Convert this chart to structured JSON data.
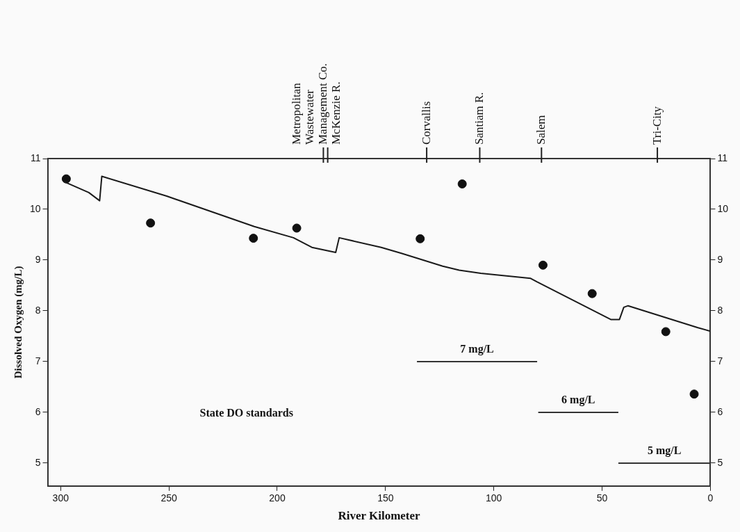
{
  "chart_data": {
    "type": "line",
    "xlabel": "River Kilometer",
    "ylabel": "Dissolved Oxygen (mg/L)",
    "xlim": [
      306,
      0
    ],
    "xticks": [
      300,
      250,
      200,
      150,
      100,
      50,
      0
    ],
    "ylim": [
      4.55,
      11
    ],
    "yticks": [
      5,
      6,
      7,
      8,
      9,
      10,
      11
    ],
    "y2lim": [
      4.55,
      11
    ],
    "y2ticks": [
      5,
      6,
      7,
      8,
      9,
      10,
      11
    ],
    "grid": false,
    "legend": false,
    "series": [
      {
        "color": "#1a1a1a",
        "x": [
          298.7,
          287,
          282,
          281,
          251,
          210.6,
          192.5,
          184,
          173,
          171.4,
          152,
          142.4,
          123.6,
          116,
          106,
          83,
          80,
          46,
          42,
          40,
          38,
          6,
          0
        ],
        "values": [
          10.55,
          10.33,
          10.17,
          10.65,
          10.26,
          9.66,
          9.44,
          9.25,
          9.15,
          9.44,
          9.25,
          9.13,
          8.88,
          8.8,
          8.74,
          8.64,
          8.57,
          7.83,
          7.83,
          8.07,
          8.1,
          7.67,
          7.6
        ]
      },
      {
        "type": "scatter",
        "marker": "circle",
        "color": "#111111",
        "x": [
          297.4,
          258.5,
          211,
          191,
          134,
          114.6,
          77.3,
          54.6,
          20.6,
          7.5
        ],
        "values": [
          10.6,
          9.73,
          9.43,
          9.63,
          9.42,
          10.5,
          8.9,
          8.34,
          7.59,
          6.36
        ]
      },
      {
        "name": "7 mg/L",
        "color": "#333333",
        "x": [
          135.5,
          80
        ],
        "values": [
          7,
          7
        ]
      },
      {
        "name": "6 mg/L",
        "color": "#333333",
        "x": [
          79.5,
          42.5
        ],
        "values": [
          6,
          6
        ]
      },
      {
        "name": "5 mg/L",
        "color": "#333333",
        "x": [
          42.5,
          0
        ],
        "values": [
          5,
          5
        ]
      }
    ],
    "ref_lines": [
      {
        "axis": "x",
        "value": 178.7,
        "label": "Metropolitan\nWastewater\nManagement Co."
      },
      {
        "axis": "x",
        "value": 176.7,
        "label": "McKenzie R."
      },
      {
        "axis": "x",
        "value": 131,
        "label": "Corvallis"
      },
      {
        "axis": "x",
        "value": 106.5,
        "label": "Santiam R."
      },
      {
        "axis": "x",
        "value": 78,
        "label": "Salem"
      },
      {
        "axis": "x",
        "value": 24.5,
        "label": "Tri-City"
      }
    ],
    "annotations": [
      "State DO standards"
    ]
  }
}
